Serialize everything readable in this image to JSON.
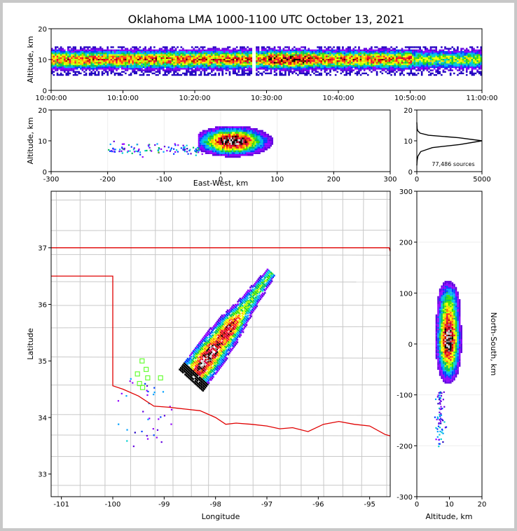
{
  "chart_data": [
    {
      "type": "heatmap",
      "name": "altitude-vs-time",
      "title": "Oklahoma LMA 1000-1100 UTC October 13, 2021",
      "ylabel": "Altitude, km",
      "xlabel": "",
      "x_ticks": [
        "10:00:00",
        "10:10:00",
        "10:20:00",
        "10:30:00",
        "10:40:00",
        "10:50:00",
        "11:00:00"
      ],
      "xlim_minutes": [
        0,
        60
      ],
      "ylim": [
        0,
        20
      ],
      "y_ticks": [
        0,
        10,
        20
      ],
      "data_gap_minutes": [
        28.0,
        28.3
      ],
      "density_band_km": [
        5,
        14
      ],
      "peak_altitude_km": 10
    },
    {
      "type": "heatmap",
      "name": "altitude-vs-east-west",
      "xlabel": "East-West, km",
      "ylabel": "Altitude, km",
      "xlim": [
        -300,
        300
      ],
      "ylim": [
        0,
        20
      ],
      "x_ticks": [
        -300,
        -200,
        -100,
        0,
        100,
        200,
        300
      ],
      "y_ticks": [
        0,
        10,
        20
      ],
      "core_x_range_km": [
        -30,
        90
      ],
      "west_tail_x_range_km": [
        -200,
        -30
      ]
    },
    {
      "type": "line",
      "name": "altitude-histogram",
      "xlim": [
        0,
        5000
      ],
      "ylim": [
        0,
        20
      ],
      "x_ticks": [
        0,
        5000
      ],
      "y_ticks": [
        0,
        10,
        20
      ],
      "annotation": "77,486 sources",
      "x": [
        0,
        20,
        80,
        300,
        1200,
        3300,
        5000,
        3200,
        900,
        250,
        80,
        20,
        0
      ],
      "y": [
        2,
        3.5,
        5,
        6.5,
        7.8,
        8.8,
        10,
        11,
        11.8,
        12.5,
        13.2,
        14,
        16
      ]
    },
    {
      "type": "heatmap",
      "name": "plan-view-map",
      "xlabel": "Longitude",
      "ylabel": "Latitude",
      "xlim": [
        -101.2,
        -94.6
      ],
      "ylim": [
        32.6,
        38.0
      ],
      "x_ticks": [
        -101,
        -100,
        -99,
        -98,
        -97,
        -96,
        -95
      ],
      "y_ticks": [
        33,
        34,
        35,
        36,
        37
      ],
      "state_border_color": "#e00000",
      "county_line_color": "#c8c8c8",
      "station_color": "#66ff33",
      "stations": [
        [
          -99.43,
          35.0
        ],
        [
          -99.35,
          34.85
        ],
        [
          -99.52,
          34.77
        ],
        [
          -99.32,
          34.7
        ],
        [
          -99.07,
          34.7
        ],
        [
          -99.48,
          34.6
        ],
        [
          -99.42,
          34.53
        ]
      ],
      "storm_axis": [
        [
          -98.4,
          34.8
        ],
        [
          -97.0,
          36.5
        ]
      ],
      "core_center": [
        -97.95,
        35.1
      ]
    },
    {
      "type": "heatmap",
      "name": "north-south-vs-altitude",
      "xlabel": "Altitude, km",
      "ylabel": "North-South, km",
      "xlim": [
        0,
        20
      ],
      "ylim": [
        -300,
        300
      ],
      "x_ticks": [
        0,
        10,
        20
      ],
      "y_ticks": [
        -300,
        -200,
        -100,
        0,
        100,
        200,
        300
      ],
      "core_y_range_km": [
        -70,
        140
      ]
    }
  ]
}
